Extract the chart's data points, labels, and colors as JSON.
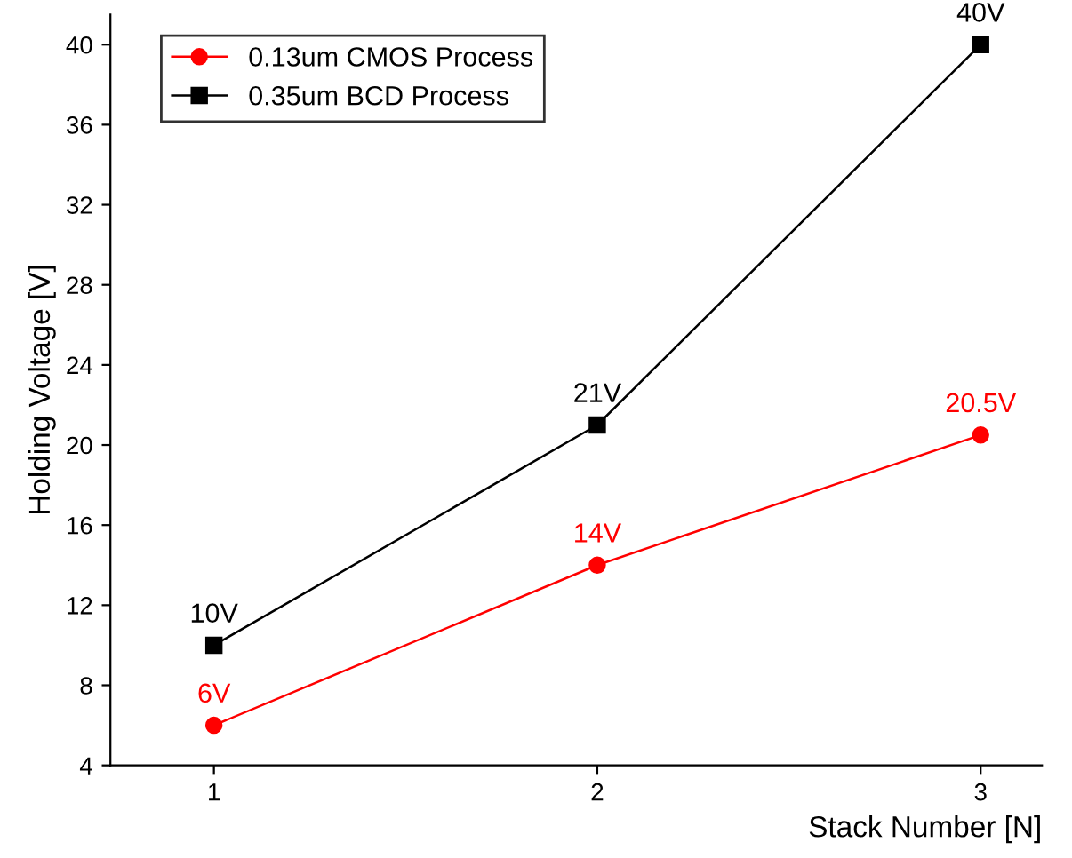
{
  "chart_data": {
    "type": "line",
    "xlabel": "Stack Number [N]",
    "ylabel": "Holding Voltage [V]",
    "x": [
      1,
      2,
      3
    ],
    "series": [
      {
        "name": "0.13um CMOS Process",
        "color": "#ff0000",
        "marker": "circle",
        "values": [
          6,
          14,
          20.5
        ],
        "value_labels": [
          "6V",
          "14V",
          "20.5V"
        ]
      },
      {
        "name": "0.35um BCD Process",
        "color": "#000000",
        "marker": "square",
        "values": [
          10,
          21,
          40
        ],
        "value_labels": [
          "10V",
          "21V",
          "40V"
        ]
      }
    ],
    "xlim": [
      0.73,
      3.16
    ],
    "xticks": [
      1,
      2,
      3
    ],
    "ylim": [
      4,
      41.5
    ],
    "yticks": [
      4,
      8,
      12,
      16,
      20,
      24,
      28,
      32,
      36,
      40
    ],
    "grid": false,
    "legend": "top left",
    "line_style": "solid"
  }
}
